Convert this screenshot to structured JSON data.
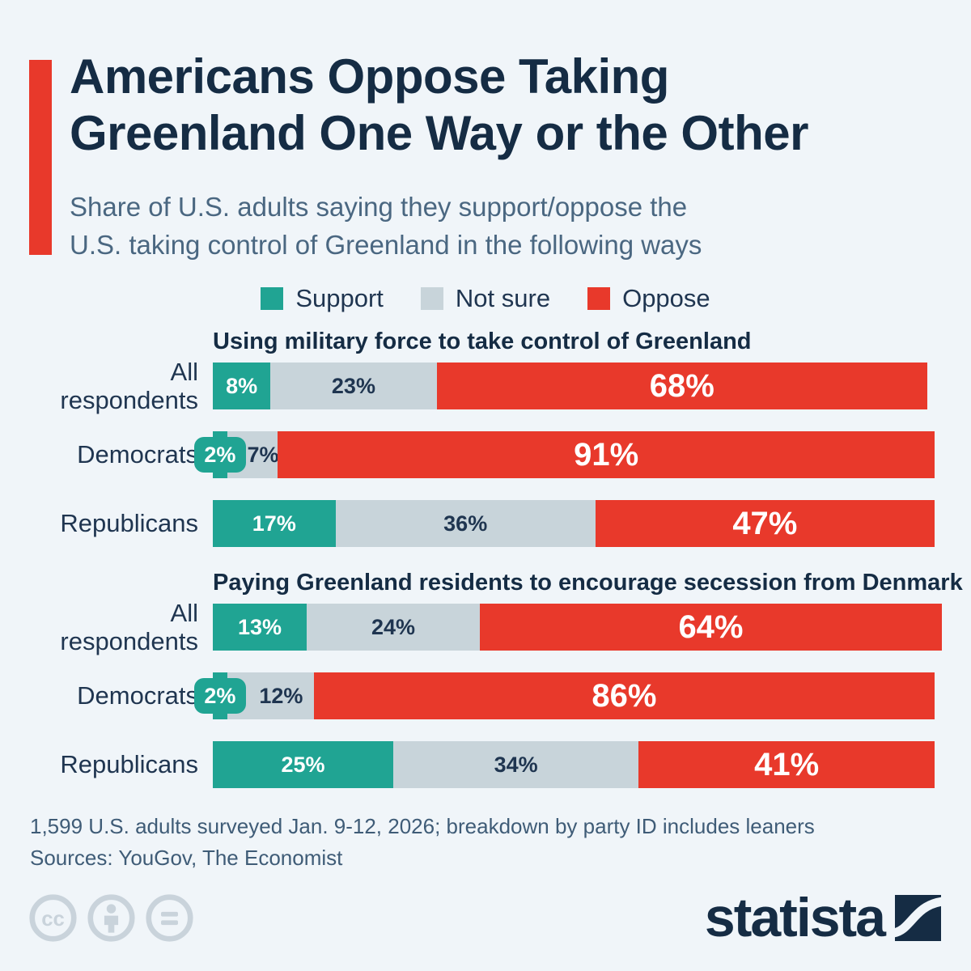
{
  "page": {
    "background_color": "#f0f5f9",
    "accent_color": "#e8392b",
    "navy_color": "#152c44"
  },
  "header": {
    "title_line1": "Americans Oppose Taking",
    "title_line2": "Greenland One Way or the Other",
    "subtitle_line1": "Share of U.S. adults saying they support/oppose the",
    "subtitle_line2": "U.S. taking control of Greenland in the following ways"
  },
  "legend": [
    {
      "label": "Support",
      "color": "#20a493"
    },
    {
      "label": "Not sure",
      "color": "#c8d4da"
    },
    {
      "label": "Oppose",
      "color": "#e8392b"
    }
  ],
  "chart_data": {
    "type": "bar",
    "orientation": "horizontal",
    "stacked": true,
    "unit": "%",
    "xlim": [
      0,
      100
    ],
    "legend_position": "top-center",
    "series_names": [
      "Support",
      "Not sure",
      "Oppose"
    ],
    "colors": {
      "support": "#20a493",
      "not_sure": "#c8d4da",
      "oppose": "#e8392b"
    },
    "groups": [
      {
        "title": "Using military force to take control of Greenland",
        "rows": [
          {
            "category": "All\nrespondents",
            "values": [
              8,
              23,
              68
            ],
            "labels": [
              "8%",
              "23%",
              "68%"
            ]
          },
          {
            "category": "Democrats",
            "values": [
              2,
              7,
              91
            ],
            "labels": [
              "2%",
              "7%",
              "91%"
            ]
          },
          {
            "category": "Republicans",
            "values": [
              17,
              36,
              47
            ],
            "labels": [
              "17%",
              "36%",
              "47%"
            ]
          }
        ]
      },
      {
        "title": "Paying Greenland residents to encourage secession from Denmark",
        "rows": [
          {
            "category": "All\nrespondents",
            "values": [
              13,
              24,
              64
            ],
            "labels": [
              "13%",
              "24%",
              "64%"
            ]
          },
          {
            "category": "Democrats",
            "values": [
              2,
              12,
              86
            ],
            "labels": [
              "2%",
              "12%",
              "86%"
            ]
          },
          {
            "category": "Republicans",
            "values": [
              25,
              34,
              41
            ],
            "labels": [
              "25%",
              "34%",
              "41%"
            ]
          }
        ]
      }
    ]
  },
  "footer": {
    "note": "1,599 U.S. adults surveyed Jan. 9-12, 2026; breakdown by party ID includes leaners",
    "sources": "Sources: YouGov, The Economist",
    "license_icon_names": [
      "cc-icon",
      "attribution-person-icon",
      "equals-icon"
    ],
    "brand": "statista"
  }
}
